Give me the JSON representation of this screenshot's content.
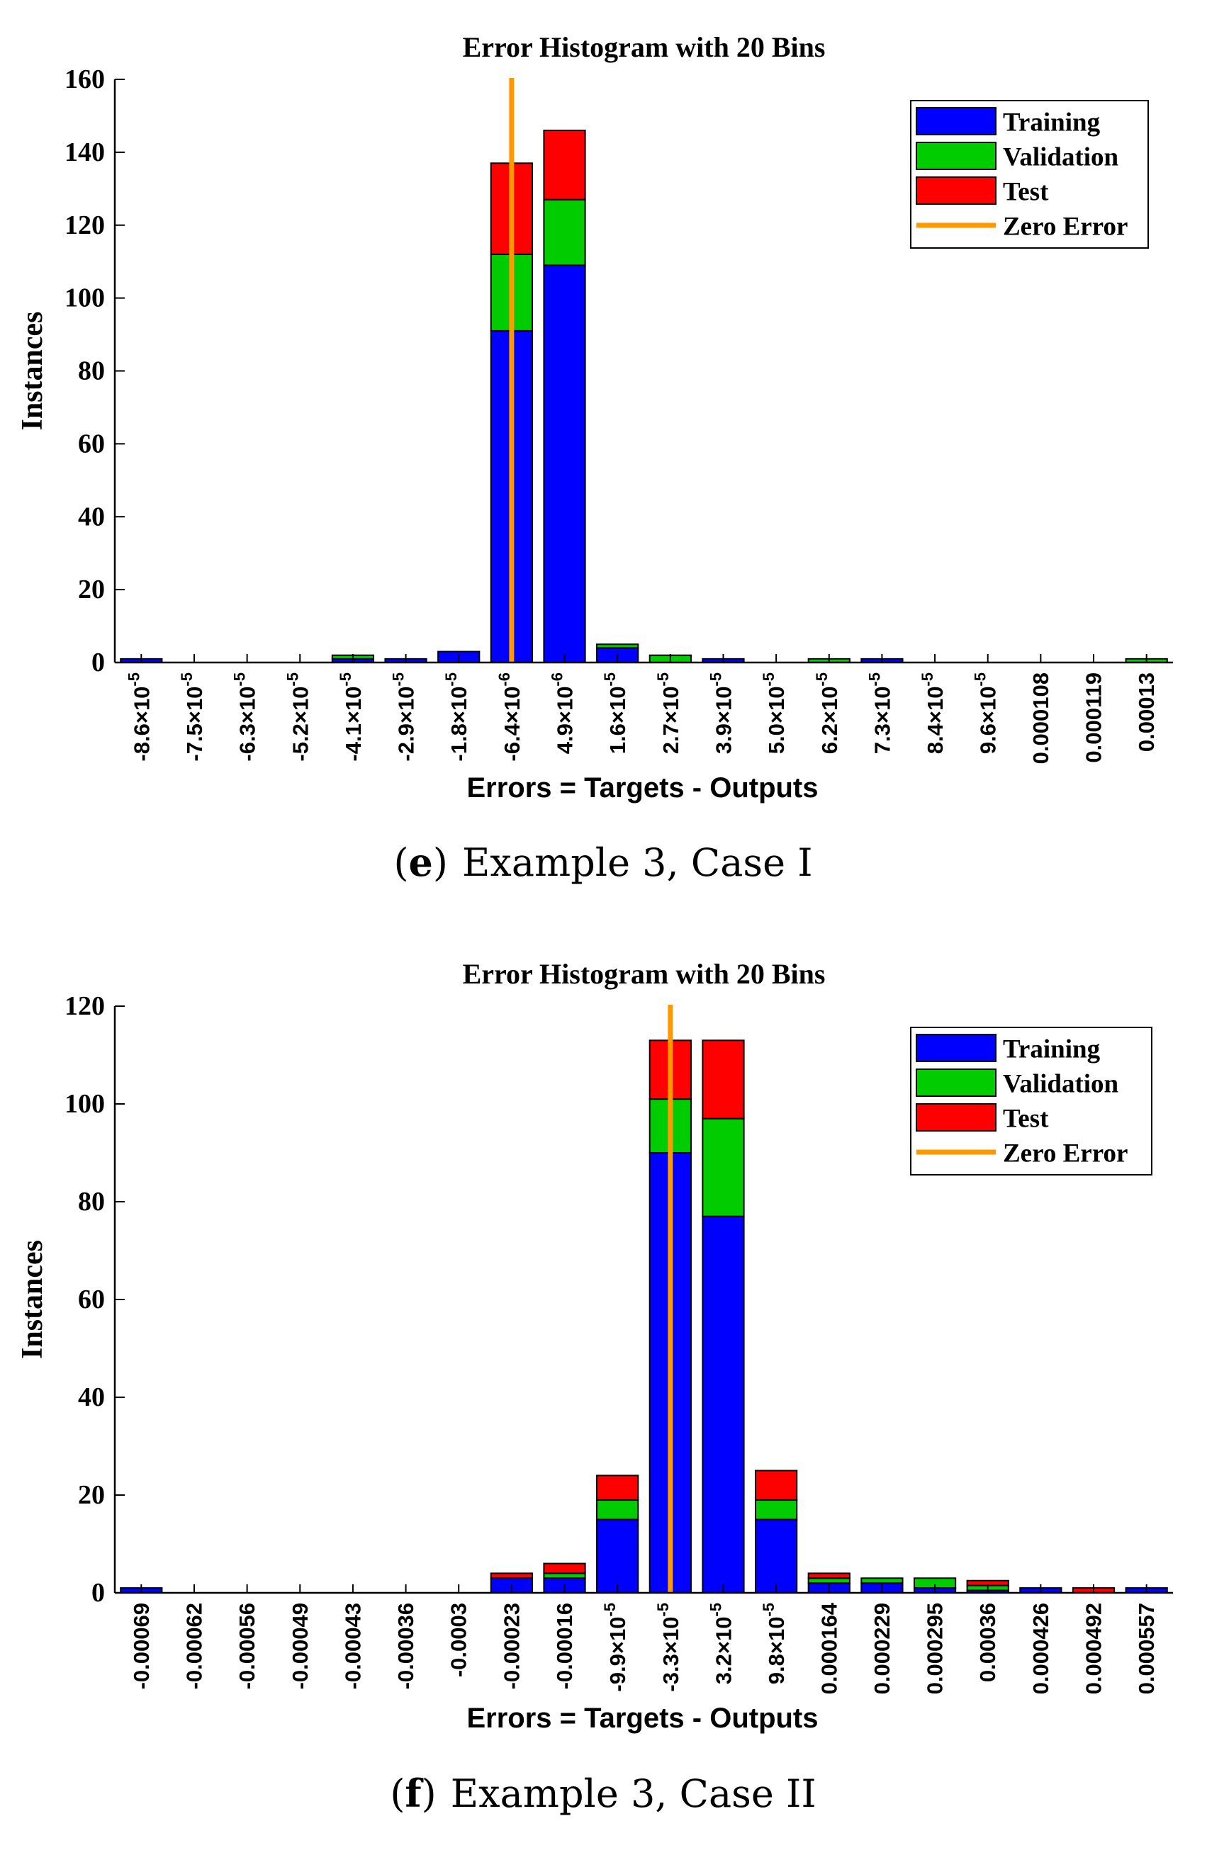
{
  "colors": {
    "training": "#0000ff",
    "validation": "#00cc00",
    "test": "#ff0000",
    "zero_error": "#ff9900",
    "axis": "#000000"
  },
  "chart_data": [
    {
      "type": "bar",
      "stacked": true,
      "title": "Error Histogram with 20 Bins",
      "xlabel": "Errors = Targets - Outputs",
      "ylabel": "Instances",
      "ylim": [
        0,
        160
      ],
      "yticks": [
        "0",
        "20",
        "40",
        "60",
        "80",
        "100",
        "120",
        "140",
        "160"
      ],
      "categories": [
        "-8.6×10-5",
        "-7.5×10-5",
        "-6.3×10-5",
        "-5.2×10-5",
        "-4.1×10-5",
        "-2.9×10-5",
        "-1.8×10-5",
        "-6.4×10-6",
        "4.9×10-6",
        "1.6×10-5",
        "2.7×10-5",
        "3.9×10-5",
        "5.0×10-5",
        "6.2×10-5",
        "7.3×10-5",
        "8.4×10-5",
        "9.6×10-5",
        "0.000108",
        "0.000119",
        "0.00013"
      ],
      "series": [
        {
          "name": "Training",
          "values": [
            1,
            0,
            0,
            0,
            1,
            1,
            3,
            91,
            109,
            4,
            0,
            1,
            0,
            0,
            1,
            0,
            0,
            0,
            0,
            0
          ]
        },
        {
          "name": "Validation",
          "values": [
            0,
            0,
            0,
            0,
            1,
            0,
            0,
            21,
            18,
            1,
            2,
            0,
            0,
            1,
            0,
            0,
            0,
            0,
            0,
            1
          ]
        },
        {
          "name": "Test",
          "values": [
            0,
            0,
            0,
            0,
            0,
            0,
            0,
            25,
            19,
            0,
            0,
            0,
            0,
            0,
            0,
            0,
            0,
            0,
            0,
            0
          ]
        }
      ],
      "zero_error_bin": 7.5,
      "legend": [
        "Training",
        "Validation",
        "Test",
        "Zero Error"
      ],
      "legend_position": "top-right",
      "caption": {
        "letter": "(e)",
        "text": "Example 3, Case I"
      }
    },
    {
      "type": "bar",
      "stacked": true,
      "title": "Error Histogram with 20 Bins",
      "xlabel": "Errors = Targets - Outputs",
      "ylabel": "Instances",
      "ylim": [
        0,
        120
      ],
      "yticks": [
        "0",
        "20",
        "40",
        "60",
        "80",
        "100",
        "120"
      ],
      "categories": [
        "-0.00069",
        "-0.00062",
        "-0.00056",
        "-0.00049",
        "-0.00043",
        "-0.00036",
        "-0.0003",
        "-0.00023",
        "-0.00016",
        "-9.9×10-5",
        "-3.3×10-5",
        "3.2×10-5",
        "9.8×10-5",
        "0.000164",
        "0.000229",
        "0.000295",
        "0.00036",
        "0.000426",
        "0.000492",
        "0.000557"
      ],
      "series": [
        {
          "name": "Training",
          "values": [
            1,
            0,
            0,
            0,
            0,
            0,
            0,
            3,
            3,
            15,
            90,
            77,
            15,
            2,
            2,
            1,
            0.5,
            1,
            0,
            1
          ]
        },
        {
          "name": "Validation",
          "values": [
            0,
            0,
            0,
            0,
            0,
            0,
            0,
            0,
            1,
            4,
            11,
            20,
            4,
            1,
            1,
            2,
            1,
            0,
            0,
            0
          ]
        },
        {
          "name": "Test",
          "values": [
            0,
            0,
            0,
            0,
            0,
            0,
            0,
            1,
            2,
            5,
            12,
            16,
            6,
            1,
            0,
            0,
            1,
            0,
            1,
            0
          ]
        }
      ],
      "zero_error_bin": 10.5,
      "legend": [
        "Training",
        "Validation",
        "Test",
        "Zero Error"
      ],
      "legend_position": "top-right",
      "caption": {
        "letter": "(f)",
        "text": "Example 3, Case II"
      }
    }
  ]
}
